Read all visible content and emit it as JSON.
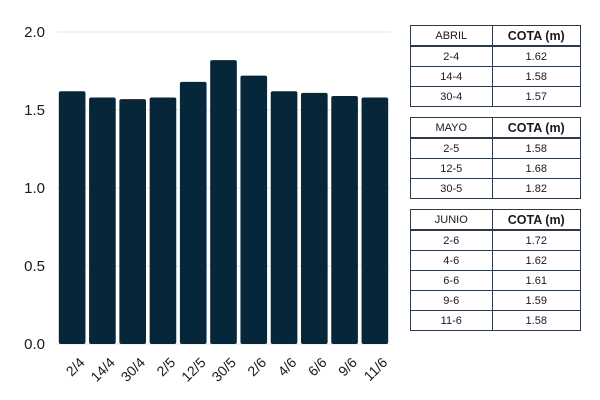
{
  "chart_data": {
    "type": "bar",
    "categories": [
      "2/4",
      "14/4",
      "30/4",
      "2/5",
      "12/5",
      "30/5",
      "2/6",
      "4/6",
      "6/6",
      "9/6",
      "11/6"
    ],
    "values": [
      1.62,
      1.58,
      1.57,
      1.58,
      1.68,
      1.82,
      1.72,
      1.62,
      1.61,
      1.59,
      1.58
    ],
    "ylim": [
      0,
      2.0
    ],
    "yticks": [
      "0.0",
      "0.5",
      "1.0",
      "1.5",
      "2.0"
    ],
    "grid": true,
    "bar_color": "#06263a"
  },
  "tables": [
    {
      "month": "ABRIL",
      "column": "COTA (m)",
      "rows": [
        {
          "date": "2-4",
          "value": "1.62"
        },
        {
          "date": "14-4",
          "value": "1.58"
        },
        {
          "date": "30-4",
          "value": "1.57"
        }
      ]
    },
    {
      "month": "MAYO",
      "column": "COTA (m)",
      "rows": [
        {
          "date": "2-5",
          "value": "1.58"
        },
        {
          "date": "12-5",
          "value": "1.68"
        },
        {
          "date": "30-5",
          "value": "1.82"
        }
      ]
    },
    {
      "month": "JUNIO",
      "column": "COTA (m)",
      "rows": [
        {
          "date": "2-6",
          "value": "1.72"
        },
        {
          "date": "4-6",
          "value": "1.62"
        },
        {
          "date": "6-6",
          "value": "1.61"
        },
        {
          "date": "9-6",
          "value": "1.59"
        },
        {
          "date": "11-6",
          "value": "1.58"
        }
      ]
    }
  ]
}
